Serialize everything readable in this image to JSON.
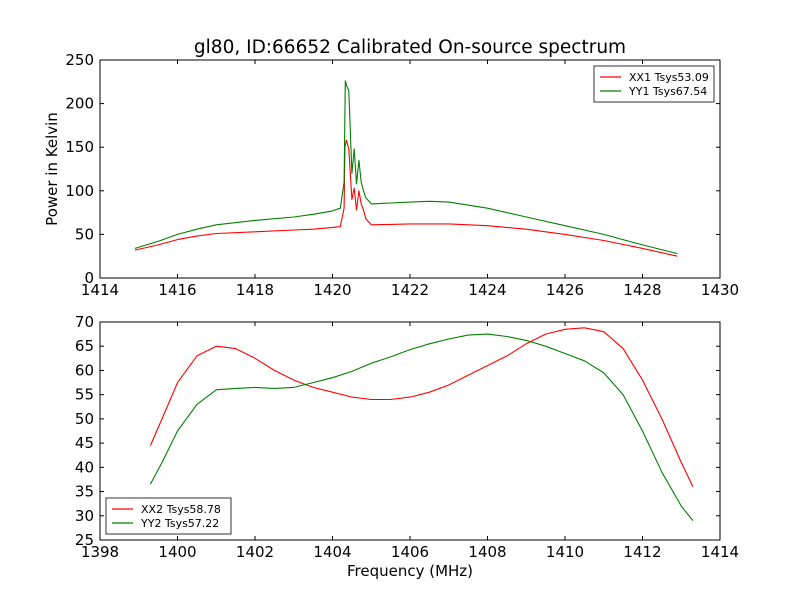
{
  "chart_data": [
    {
      "type": "line",
      "title": "gl80, ID:66652 Calibrated On-source spectrum",
      "xlabel": "",
      "ylabel": "Power in Kelvin",
      "xlim": [
        1414,
        1430
      ],
      "ylim": [
        0,
        250
      ],
      "xticks": [
        1414,
        1416,
        1418,
        1420,
        1422,
        1424,
        1426,
        1428,
        1430
      ],
      "yticks": [
        0,
        50,
        100,
        150,
        200,
        250
      ],
      "grid": false,
      "legend": "top-right",
      "series": [
        {
          "name": "XX1 Tsys53.09",
          "color": "#ff0000",
          "x": [
            1414.9,
            1415.5,
            1416,
            1416.5,
            1417,
            1418,
            1419,
            1419.5,
            1420,
            1420.2,
            1420.3,
            1420.32,
            1420.36,
            1420.42,
            1420.5,
            1420.56,
            1420.62,
            1420.68,
            1420.74,
            1420.8,
            1420.86,
            1421,
            1421.5,
            1422,
            1423,
            1424,
            1425,
            1426,
            1427,
            1428,
            1428.9
          ],
          "y": [
            32,
            38,
            44,
            48,
            51,
            53,
            55,
            56,
            58,
            59,
            80,
            150,
            158,
            148,
            90,
            103,
            78,
            100,
            85,
            78,
            68,
            61,
            61.5,
            62,
            62,
            60,
            56,
            50,
            43,
            34,
            25
          ]
        },
        {
          "name": "YY1 Tsys67.54",
          "color": "#008000",
          "x": [
            1414.9,
            1415.5,
            1416,
            1416.5,
            1417,
            1418,
            1419,
            1419.5,
            1420,
            1420.2,
            1420.3,
            1420.33,
            1420.37,
            1420.42,
            1420.5,
            1420.56,
            1420.62,
            1420.68,
            1420.74,
            1420.8,
            1420.86,
            1421,
            1421.5,
            1422,
            1422.5,
            1423,
            1424,
            1425,
            1426,
            1427,
            1428,
            1428.9
          ],
          "y": [
            34,
            42,
            50,
            56,
            61,
            66,
            70,
            73,
            77,
            80,
            110,
            226,
            220,
            215,
            120,
            148,
            108,
            135,
            110,
            100,
            92,
            85,
            86,
            87,
            88,
            87,
            80,
            70,
            60,
            50,
            38,
            28
          ]
        }
      ]
    },
    {
      "type": "line",
      "title": "",
      "xlabel": "Frequency (MHz)",
      "ylabel": "",
      "xlim": [
        1398,
        1414
      ],
      "ylim": [
        25,
        70
      ],
      "xticks": [
        1398,
        1400,
        1402,
        1404,
        1406,
        1408,
        1410,
        1412,
        1414
      ],
      "yticks": [
        25,
        30,
        35,
        40,
        45,
        50,
        55,
        60,
        65,
        70
      ],
      "grid": false,
      "legend": "bottom-left",
      "series": [
        {
          "name": "XX2 Tsys58.78",
          "color": "#ff0000",
          "x": [
            1399.3,
            1399.6,
            1400,
            1400.5,
            1401,
            1401.5,
            1402,
            1402.5,
            1403,
            1403.5,
            1404,
            1404.5,
            1405,
            1405.5,
            1406,
            1406.5,
            1407,
            1407.5,
            1408,
            1408.5,
            1409,
            1409.5,
            1410,
            1410.5,
            1411,
            1411.5,
            1412,
            1412.5,
            1413,
            1413.3
          ],
          "y": [
            44.5,
            50,
            57.5,
            63,
            65,
            64.5,
            62.5,
            60,
            58,
            56.5,
            55.5,
            54.5,
            54,
            54,
            54.5,
            55.5,
            57,
            59,
            61,
            63,
            65.5,
            67.5,
            68.5,
            68.8,
            68,
            64.5,
            58,
            50,
            41,
            36
          ]
        },
        {
          "name": "YY2 Tsys57.22",
          "color": "#008000",
          "x": [
            1399.3,
            1399.6,
            1400,
            1400.5,
            1401,
            1401.5,
            1402,
            1402.5,
            1403,
            1403.5,
            1404,
            1404.5,
            1405,
            1405.5,
            1406,
            1406.5,
            1407,
            1407.5,
            1408,
            1408.5,
            1409,
            1409.5,
            1410,
            1410.5,
            1411,
            1411.5,
            1412,
            1412.5,
            1413,
            1413.3
          ],
          "y": [
            36.5,
            41,
            47.5,
            53,
            56,
            56.3,
            56.5,
            56.3,
            56.5,
            57.5,
            58.5,
            59.8,
            61.5,
            62.8,
            64.3,
            65.5,
            66.5,
            67.3,
            67.5,
            67,
            66.2,
            65,
            63.5,
            62,
            59.5,
            55,
            47.5,
            39,
            32,
            29
          ]
        }
      ]
    }
  ]
}
